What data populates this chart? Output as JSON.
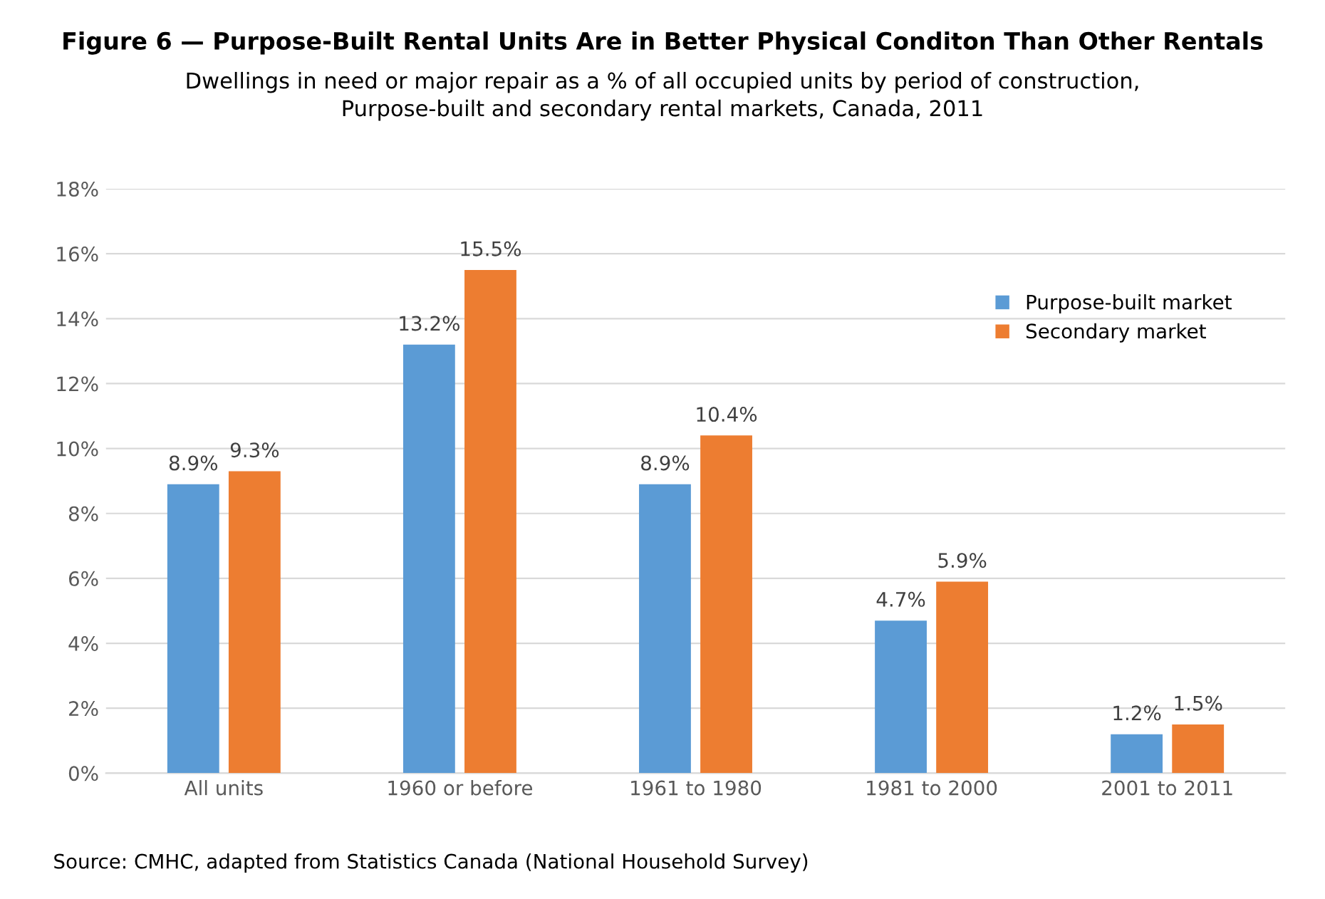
{
  "chart_data": {
    "type": "bar",
    "title": "Figure 6 — Purpose-Built Rental Units Are in Better Physical Conditon Than Other Rentals",
    "subtitle": "Dwellings in need or major repair as a % of all occupied units by period of construction,\nPurpose-built and secondary rental markets, Canada, 2011",
    "categories": [
      "All units",
      "1960 or before",
      "1961 to 1980",
      "1981 to 2000",
      "2001 to 2011"
    ],
    "series": [
      {
        "name": "Purpose-built market",
        "color": "#5b9bd5",
        "values": [
          8.9,
          13.2,
          8.9,
          4.7,
          1.2
        ],
        "value_labels": [
          "8.9%",
          "13.2%",
          "8.9%",
          "4.7%",
          "1.2%"
        ]
      },
      {
        "name": "Secondary market",
        "color": "#ed7d31",
        "values": [
          9.3,
          15.5,
          10.4,
          5.9,
          1.5
        ],
        "value_labels": [
          "9.3%",
          "15.5%",
          "10.4%",
          "5.9%",
          "1.5%"
        ]
      }
    ],
    "ylim": [
      0,
      18
    ],
    "yticks": [
      {
        "value": 0,
        "label": "0%"
      },
      {
        "value": 2,
        "label": "2%"
      },
      {
        "value": 4,
        "label": "4%"
      },
      {
        "value": 6,
        "label": "6%"
      },
      {
        "value": 8,
        "label": "8%"
      },
      {
        "value": 10,
        "label": "10%"
      },
      {
        "value": 12,
        "label": "12%"
      },
      {
        "value": 14,
        "label": "14%"
      },
      {
        "value": 16,
        "label": "16%"
      },
      {
        "value": 18,
        "label": "18%"
      }
    ],
    "grid": "y",
    "legend": "top right",
    "annotations": [
      "Source: CMHC, adapted from Statistics Canada (National Household Survey)"
    ]
  }
}
